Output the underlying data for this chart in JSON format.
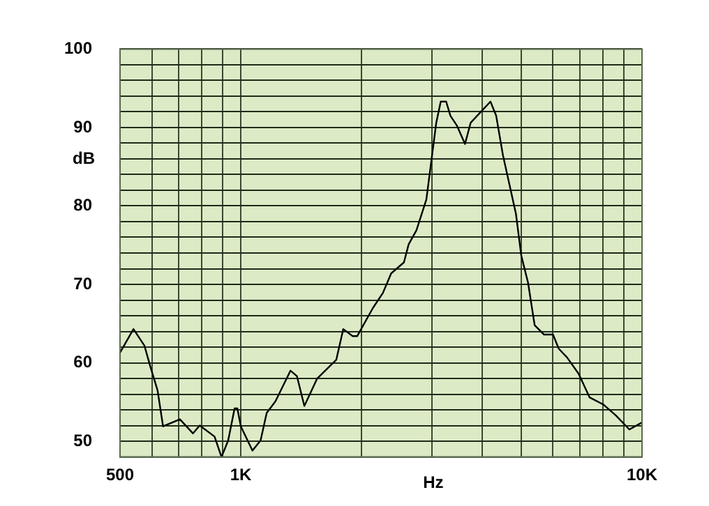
{
  "chart_data": {
    "type": "line",
    "xlabel": "Hz",
    "ylabel": "dB",
    "log": "x",
    "grid": true,
    "legend": false,
    "marker": "none",
    "line_style": "solid",
    "xlim": [
      500,
      10000
    ],
    "ylim": [
      48,
      100
    ],
    "xticks": [
      500,
      {
        "value": 600,
        "label": null
      },
      {
        "value": 700,
        "label": null
      },
      {
        "value": 800,
        "label": null
      },
      {
        "value": 900,
        "label": null
      },
      {
        "value": 1000,
        "label": "1K"
      },
      {
        "value": 2000,
        "label": null
      },
      {
        "value": 3000,
        "label": null
      },
      {
        "value": 4000,
        "label": null
      },
      {
        "value": 5000,
        "label": null
      },
      {
        "value": 6000,
        "label": null
      },
      {
        "value": 7000,
        "label": null
      },
      {
        "value": 8000,
        "label": null
      },
      {
        "value": 9000,
        "label": null
      },
      {
        "value": 10000,
        "label": "10K"
      }
    ],
    "yticks": [
      50,
      {
        "value": 52,
        "label": null
      },
      {
        "value": 54,
        "label": null
      },
      {
        "value": 56,
        "label": null
      },
      {
        "value": 58,
        "label": null
      },
      60,
      {
        "value": 62,
        "label": null
      },
      {
        "value": 64,
        "label": null
      },
      {
        "value": 66,
        "label": null
      },
      {
        "value": 68,
        "label": null
      },
      70,
      {
        "value": 72,
        "label": null
      },
      {
        "value": 74,
        "label": null
      },
      {
        "value": 76,
        "label": null
      },
      {
        "value": 78,
        "label": null
      },
      80,
      {
        "value": 82,
        "label": null
      },
      {
        "value": 84,
        "label": null
      },
      {
        "value": 86,
        "label": null
      },
      {
        "value": 88,
        "label": null
      },
      90,
      {
        "value": 92,
        "label": null
      },
      {
        "value": 94,
        "label": null
      },
      {
        "value": 96,
        "label": null
      },
      {
        "value": 98,
        "label": null
      },
      100
    ],
    "series": [
      {
        "color": "#000000",
        "x": [
          500,
          540,
          575,
          595,
          620,
          640,
          705,
          760,
          790,
          860,
          895,
          930,
          965,
          980,
          1000,
          1069,
          1120,
          1160,
          1220,
          1330,
          1380,
          1440,
          1550,
          1730,
          1800,
          1900,
          1950,
          2135,
          2260,
          2370,
          2550,
          2620,
          2740,
          2900,
          2970,
          3070,
          3150,
          3250,
          3330,
          3460,
          3620,
          3740,
          4190,
          4330,
          4500,
          4850,
          5000,
          5200,
          5400,
          5700,
          6000,
          6200,
          6500,
          6950,
          7400,
          8000,
          8600,
          9300,
          10000
        ],
        "values": [
          61.3,
          64.3,
          62.2,
          59.5,
          56.5,
          51.9,
          52.8,
          51,
          52,
          50.6,
          48,
          50.1,
          54.2,
          54.2,
          51.9,
          48.8,
          50.1,
          53.6,
          55.1,
          59,
          58.3,
          54.5,
          58,
          60.4,
          64.3,
          63.4,
          63.4,
          67,
          68.9,
          71.4,
          72.8,
          75.1,
          76.9,
          80.8,
          84.9,
          90.6,
          93.3,
          93.3,
          91.5,
          90.2,
          87.9,
          90.6,
          93.3,
          91.5,
          86.5,
          79,
          73.7,
          70.2,
          64.8,
          63.6,
          63.6,
          61.8,
          60.7,
          58.6,
          55.6,
          54.7,
          53.3,
          51.5,
          52.4
        ]
      }
    ]
  }
}
